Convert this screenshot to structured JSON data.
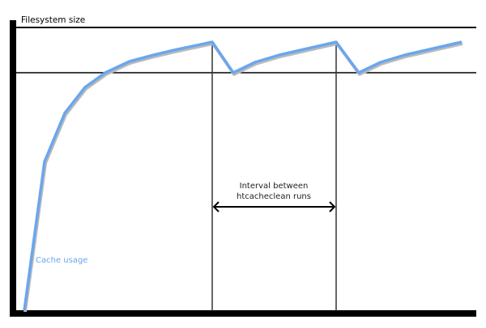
{
  "diagram": {
    "y_axis_label": "Filesystem size",
    "series_label": "Cache usage",
    "interval_label_line1": "Interval between",
    "interval_label_line2": "htcacheclean runs",
    "colors": {
      "cache_line": "#6aa6ee",
      "cache_shadow": "#bbbbbb",
      "axis": "#000000",
      "cache_label": "#6aa6ee"
    }
  }
}
